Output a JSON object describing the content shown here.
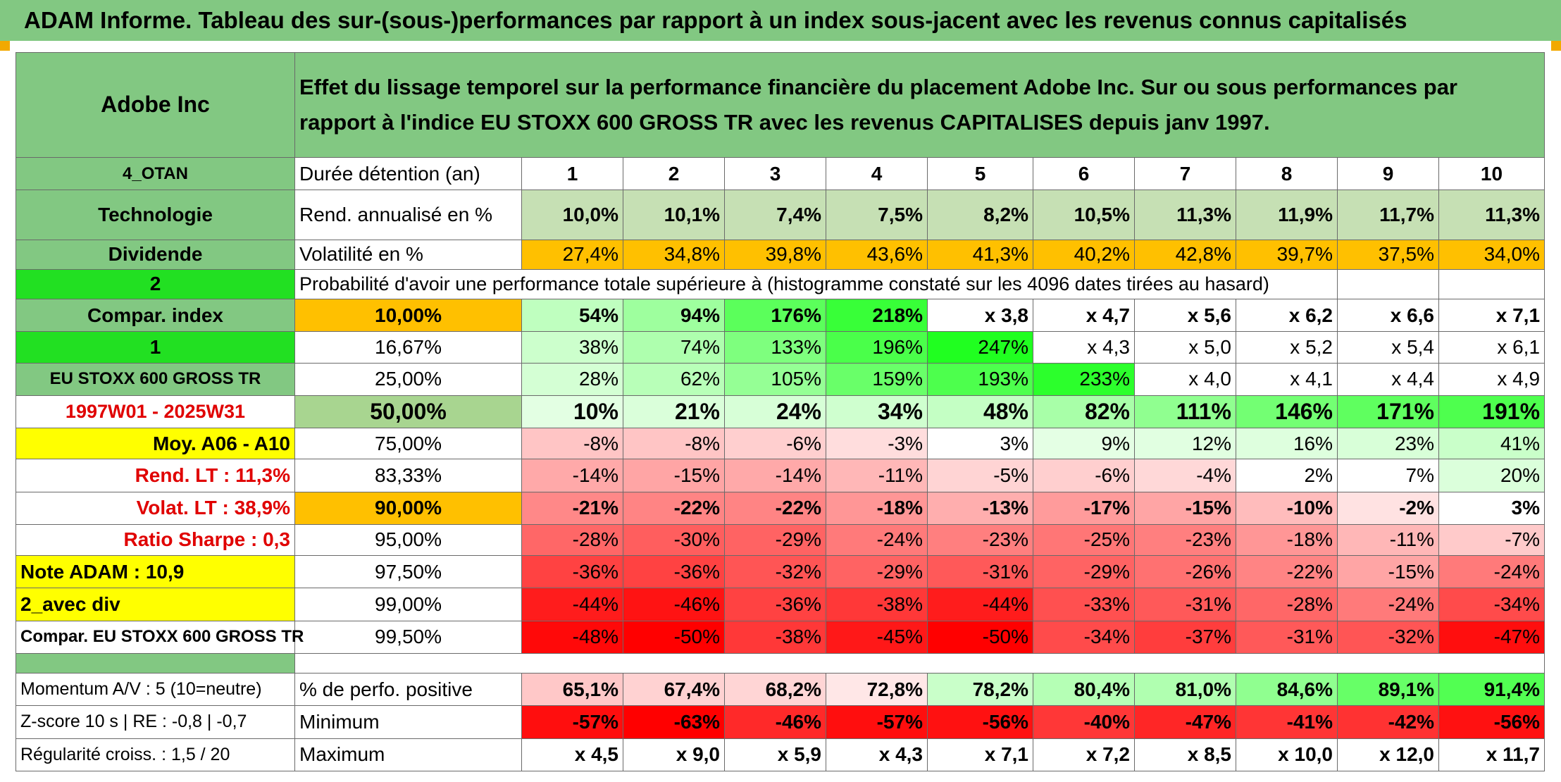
{
  "title": "ADAM Informe. Tableau des sur-(sous-)performances par rapport à un index sous-jacent avec les revenus connus capitalisés",
  "left": {
    "company": "Adobe Inc",
    "code": "4_OTAN",
    "sector": "Technologie",
    "dividend_label": "Dividende",
    "selector_value": "2",
    "compar_index_label": "Compar. index",
    "index_selector": "1",
    "index_name": "EU STOXX 600 GROSS TR",
    "period": "1997W01 - 2025W31",
    "moy": "Moy. A06 - A10",
    "rend_lt": "Rend. LT :    11,3%",
    "volat_lt": "Volat. LT :    38,9%",
    "sharpe": "Ratio Sharpe :    0,3",
    "note": "Note ADAM : 10,9",
    "avec_div": "2_avec div",
    "compar_full": "Compar. EU STOXX 600 GROSS TR",
    "momentum": "Momentum A/V : 5 (10=neutre)",
    "zscore": "Z-score 10 s | RE : -0,8 | -0,7",
    "regularite": "Régularité croiss. : 1,5 / 20"
  },
  "header_text": "Effet du lissage temporel sur la performance financière du placement Adobe Inc. Sur ou sous performances par rapport à l'indice EU STOXX 600 GROSS TR avec les revenus CAPITALISES depuis janv 1997.",
  "duration_label": "Durée détention (an)",
  "years": [
    "1",
    "2",
    "3",
    "4",
    "5",
    "6",
    "7",
    "8",
    "9",
    "10"
  ],
  "rend_label": "Rend. annualisé en %",
  "rend": [
    "10,0%",
    "10,1%",
    "7,4%",
    "7,5%",
    "8,2%",
    "10,5%",
    "11,3%",
    "11,9%",
    "11,7%",
    "11,3%"
  ],
  "vol_label": "Volatilité en %",
  "vol": [
    "27,4%",
    "34,8%",
    "39,8%",
    "43,6%",
    "41,3%",
    "40,2%",
    "42,8%",
    "39,7%",
    "37,5%",
    "34,0%"
  ],
  "prob_label": "Probabilité d'avoir une performance totale supérieure à (histogramme constaté sur les 4096 dates tirées au hasard)",
  "quantiles": [
    {
      "p": "10,00%",
      "v": [
        "54%",
        "94%",
        "176%",
        "218%",
        "x 3,8",
        "x 4,7",
        "x 5,6",
        "x 6,2",
        "x 6,6",
        "x 7,1"
      ]
    },
    {
      "p": "16,67%",
      "v": [
        "38%",
        "74%",
        "133%",
        "196%",
        "247%",
        "x 4,3",
        "x 5,0",
        "x 5,2",
        "x 5,4",
        "x 6,1"
      ]
    },
    {
      "p": "25,00%",
      "v": [
        "28%",
        "62%",
        "105%",
        "159%",
        "193%",
        "233%",
        "x 4,0",
        "x 4,1",
        "x 4,4",
        "x 4,9"
      ]
    },
    {
      "p": "50,00%",
      "v": [
        "10%",
        "21%",
        "24%",
        "34%",
        "48%",
        "82%",
        "111%",
        "146%",
        "171%",
        "191%"
      ]
    },
    {
      "p": "75,00%",
      "v": [
        "-8%",
        "-8%",
        "-6%",
        "-3%",
        "3%",
        "9%",
        "12%",
        "16%",
        "23%",
        "41%"
      ]
    },
    {
      "p": "83,33%",
      "v": [
        "-14%",
        "-15%",
        "-14%",
        "-11%",
        "-5%",
        "-6%",
        "-4%",
        "2%",
        "7%",
        "20%"
      ]
    },
    {
      "p": "90,00%",
      "v": [
        "-21%",
        "-22%",
        "-22%",
        "-18%",
        "-13%",
        "-17%",
        "-15%",
        "-10%",
        "-2%",
        "3%"
      ]
    },
    {
      "p": "95,00%",
      "v": [
        "-28%",
        "-30%",
        "-29%",
        "-24%",
        "-23%",
        "-25%",
        "-23%",
        "-18%",
        "-11%",
        "-7%"
      ]
    },
    {
      "p": "97,50%",
      "v": [
        "-36%",
        "-36%",
        "-32%",
        "-29%",
        "-31%",
        "-29%",
        "-26%",
        "-22%",
        "-15%",
        "-24%"
      ]
    },
    {
      "p": "99,00%",
      "v": [
        "-44%",
        "-46%",
        "-36%",
        "-38%",
        "-44%",
        "-33%",
        "-31%",
        "-28%",
        "-24%",
        "-34%"
      ]
    },
    {
      "p": "99,50%",
      "v": [
        "-48%",
        "-50%",
        "-38%",
        "-45%",
        "-50%",
        "-34%",
        "-37%",
        "-31%",
        "-32%",
        "-47%"
      ]
    }
  ],
  "pos_label": "% de perfo. positive",
  "pos": [
    "65,1%",
    "67,4%",
    "68,2%",
    "72,8%",
    "78,2%",
    "80,4%",
    "81,0%",
    "84,6%",
    "89,1%",
    "91,4%"
  ],
  "min_label": "Minimum",
  "min": [
    "-57%",
    "-63%",
    "-46%",
    "-57%",
    "-56%",
    "-40%",
    "-47%",
    "-41%",
    "-42%",
    "-56%"
  ],
  "max_label": "Maximum",
  "max": [
    "x 4,5",
    "x 9,0",
    "x 5,9",
    "x 4,3",
    "x 7,1",
    "x 7,2",
    "x 8,5",
    "x 10,0",
    "x 12,0",
    "x 11,7"
  ],
  "colors": {
    "header_green": "#82c882",
    "bright_green": "#22e022",
    "yellow": "#ffff00",
    "orange": "#ffc000",
    "light_green": "#c6e0b4",
    "red": "#ff0000",
    "label_red": "#e00000"
  }
}
